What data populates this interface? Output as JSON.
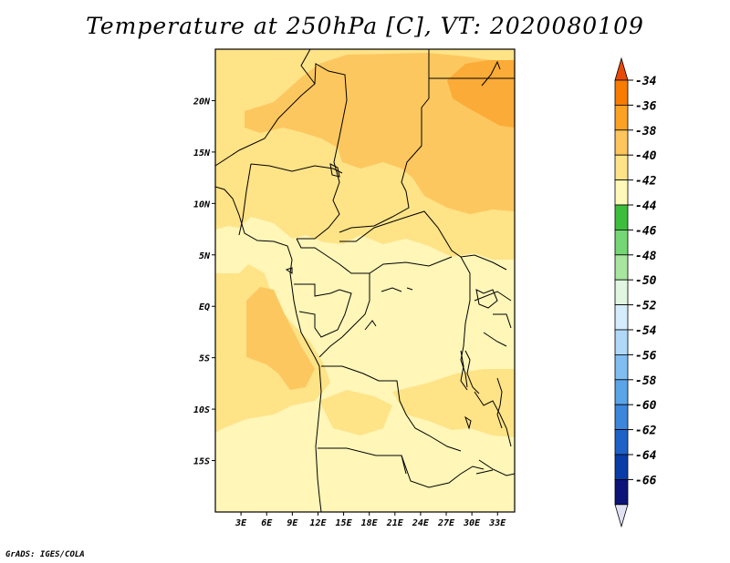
{
  "title": "Temperature at 250hPa [C], VT: 2020080109",
  "credit": "GrADS: IGES/COLA",
  "map": {
    "lon_range": [
      0,
      35
    ],
    "lat_range": [
      -20,
      25
    ],
    "lon_ticks": [
      "3E",
      "6E",
      "9E",
      "12E",
      "15E",
      "18E",
      "21E",
      "24E",
      "27E",
      "30E",
      "33E"
    ],
    "lat_ticks": [
      "20N",
      "15N",
      "10N",
      "5N",
      "EQ",
      "5S",
      "10S",
      "15S"
    ],
    "contour_classes": [
      {
        "range": "-44 to -42",
        "color": "#fff6b8"
      },
      {
        "range": "-42 to -40",
        "color": "#fee387"
      },
      {
        "range": "-40 to -38",
        "color": "#fdc75f"
      },
      {
        "range": "-38 to -36",
        "color": "#fbab37"
      }
    ]
  },
  "colorbar": {
    "labels": [
      "-34",
      "-36",
      "-38",
      "-40",
      "-42",
      "-44",
      "-46",
      "-48",
      "-50",
      "-52",
      "-54",
      "-56",
      "-58",
      "-60",
      "-62",
      "-64",
      "-66"
    ],
    "colors": [
      "#e84a05",
      "#f77c00",
      "#fba224",
      "#fdc55c",
      "#fee387",
      "#fff8b8",
      "#3cbe3c",
      "#74d674",
      "#a8e6a0",
      "#e0f6e0",
      "#d4ecfc",
      "#b0d9f8",
      "#80bdf0",
      "#5aa4e8",
      "#3c86dc",
      "#1e62c8",
      "#0a3ca8",
      "#0c1478",
      "#e0e2f4"
    ]
  }
}
